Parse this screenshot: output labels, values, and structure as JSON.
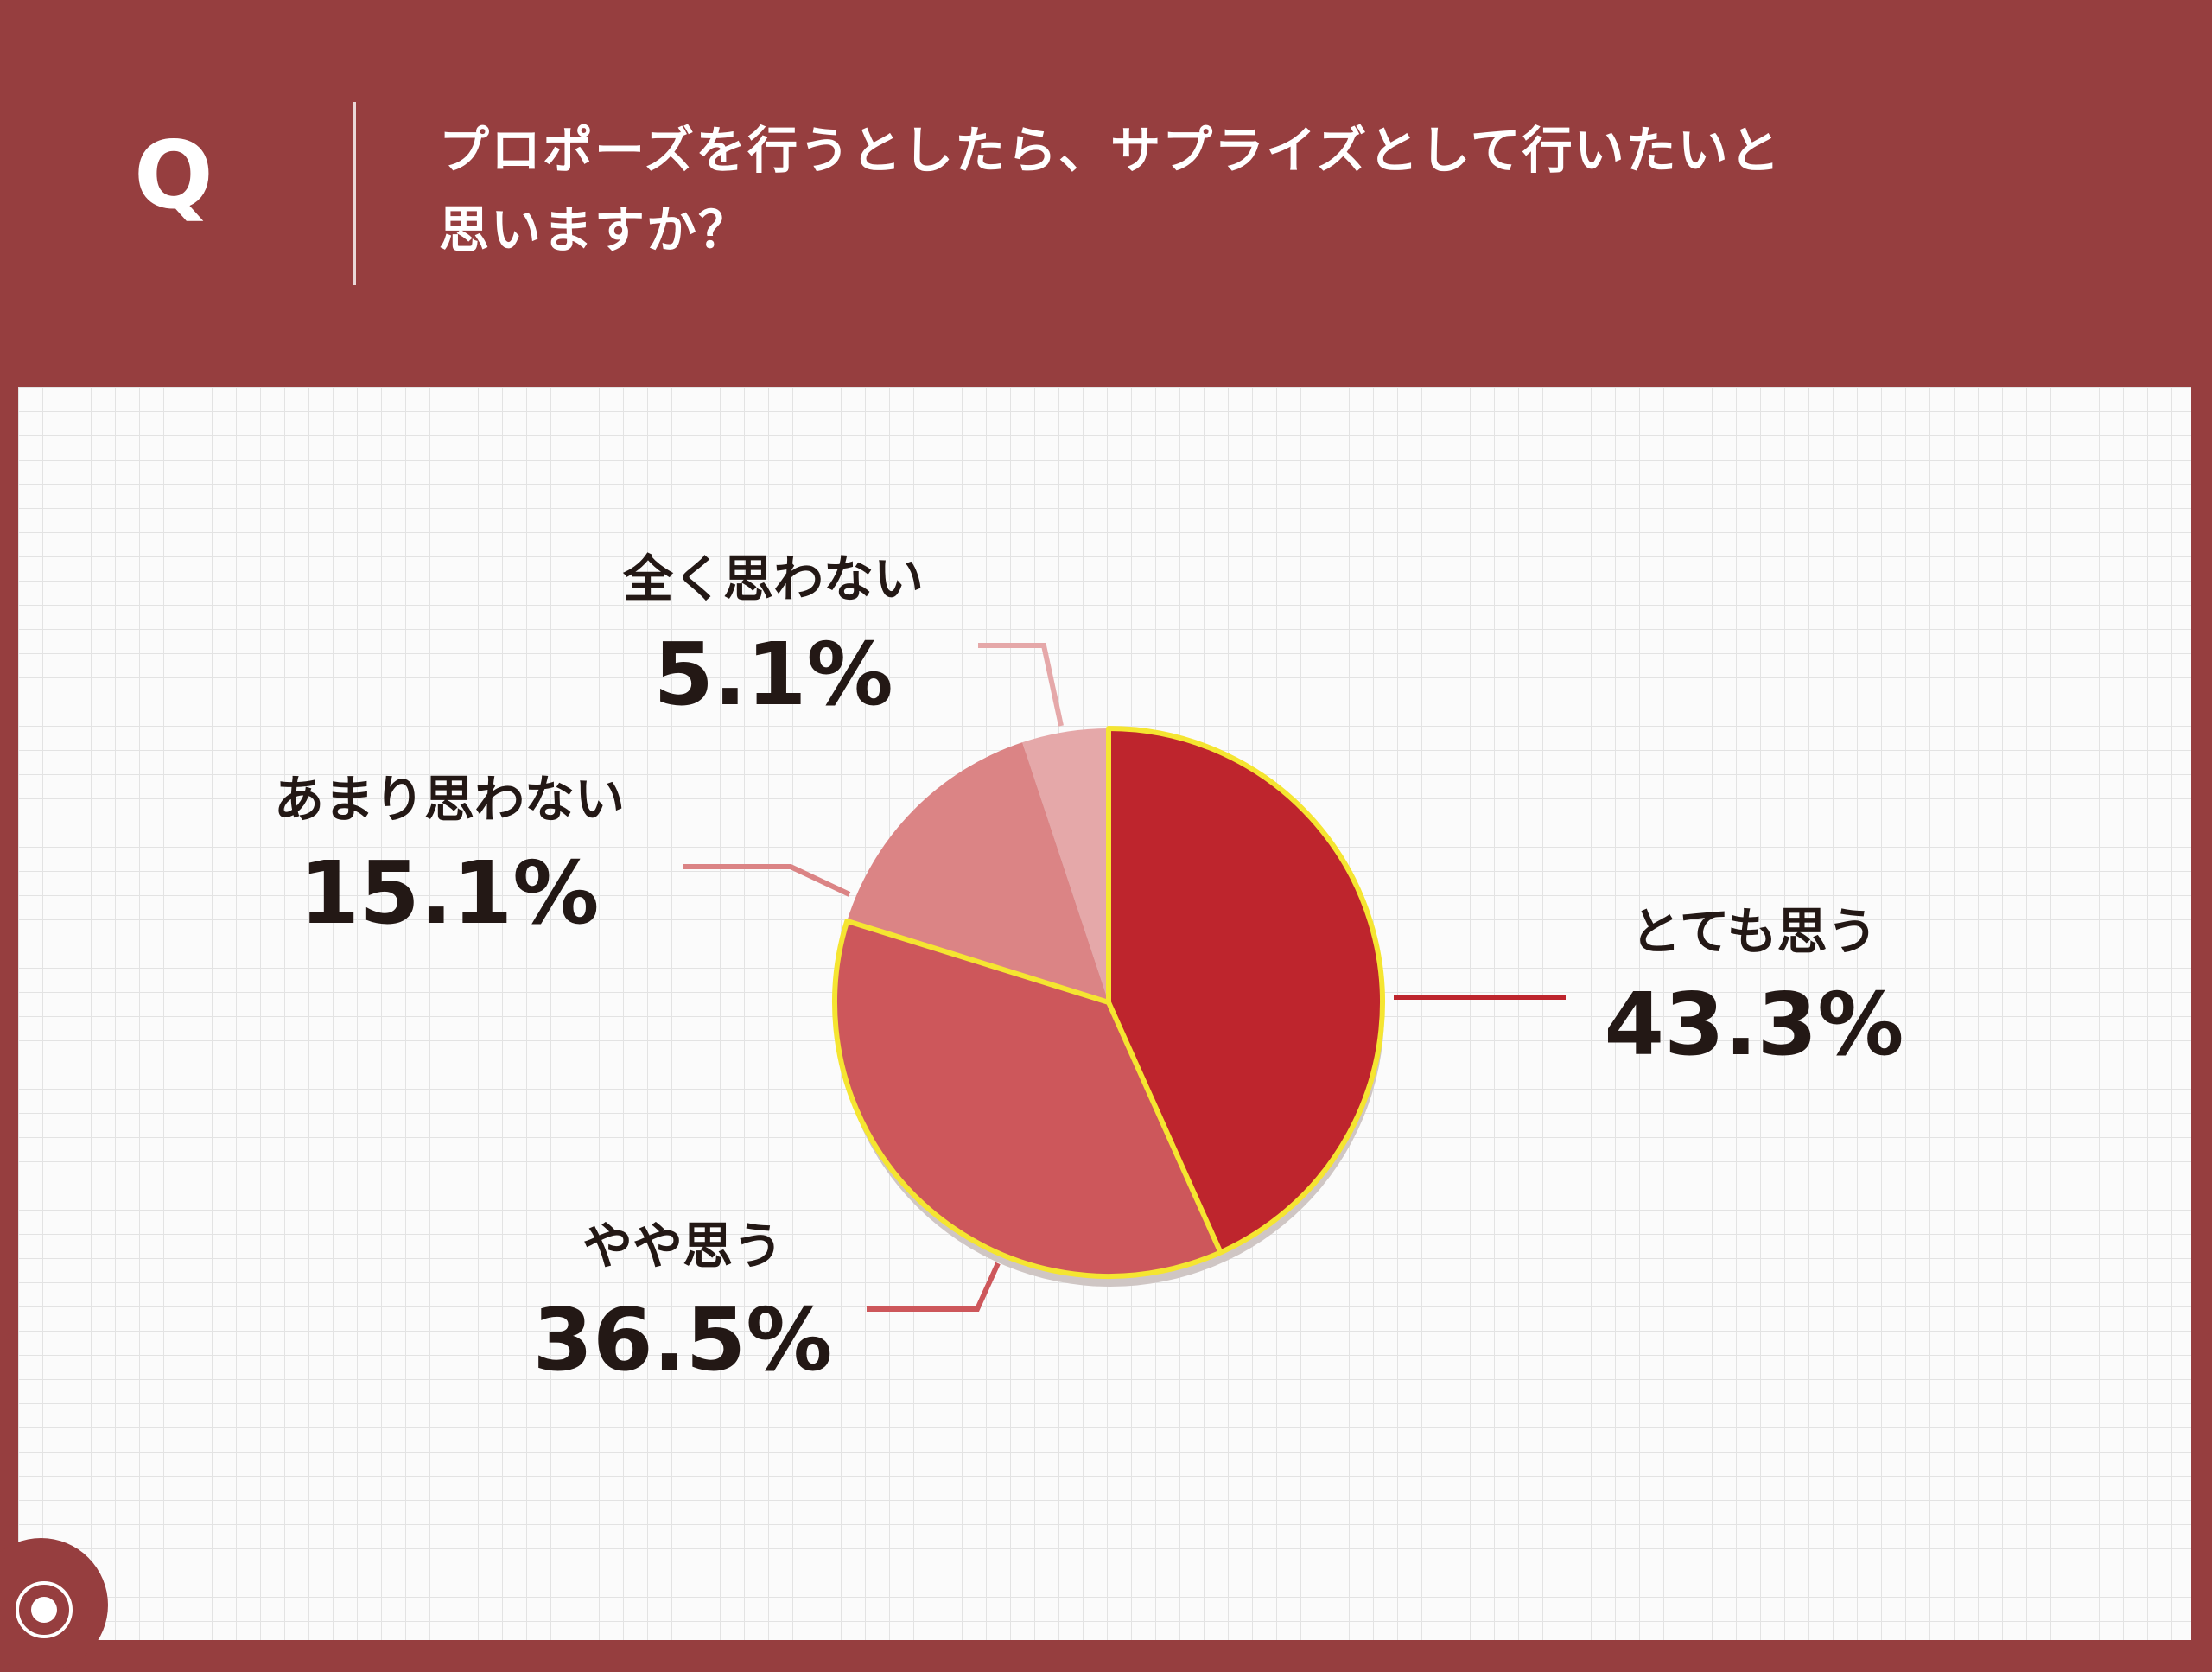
{
  "header": {
    "q_mark": "Q",
    "question_line1": "プロポーズを行うとしたら、サプライズとして行いたいと",
    "question_line2": "思いますか？"
  },
  "chart_data": {
    "type": "pie",
    "start_angle_deg": 0,
    "direction": "clockwise",
    "slices": [
      {
        "label": "とても思う",
        "value": 43.3,
        "value_label": "43.3%",
        "color": "#be252d"
      },
      {
        "label": "やや思う",
        "value": 36.5,
        "value_label": "36.5%",
        "color": "#cd575b"
      },
      {
        "label": "あまり思わない",
        "value": 15.1,
        "value_label": "15.1%",
        "color": "#db8485"
      },
      {
        "label": "全く思わない",
        "value": 5.1,
        "value_label": "5.1%",
        "color": "#e5a8a9"
      }
    ],
    "highlight": {
      "slices": [
        "とても思う",
        "やや思う"
      ],
      "outline_color": "#f5e531"
    }
  },
  "logo": {
    "icon": "ring-couple-icon"
  }
}
